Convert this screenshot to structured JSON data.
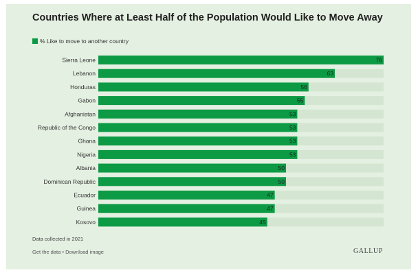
{
  "chart_data": {
    "type": "bar",
    "orientation": "horizontal",
    "title": "Countries Where at Least Half of the Population Would Like to Move Away",
    "categories": [
      "Sierra Leone",
      "Lebanon",
      "Honduras",
      "Gabon",
      "Afghanistan",
      "Republic of the Congo",
      "Ghana",
      "Nigeria",
      "Albania",
      "Dominican Republic",
      "Ecuador",
      "Guinea",
      "Kosovo"
    ],
    "series": [
      {
        "name": "% Like to move to another country",
        "values": [
          76,
          63,
          56,
          55,
          53,
          53,
          53,
          53,
          50,
          50,
          47,
          47,
          45
        ]
      }
    ],
    "xlim": [
      0,
      76
    ],
    "legend_position": "top-left",
    "note": "Data collected in 2021"
  },
  "colors": {
    "bar": "#0d9a45",
    "track": "#d4e6d1",
    "background": "#e4f0e1"
  },
  "footer": {
    "get_data": "Get the data",
    "separator": "•",
    "download": "Download image",
    "brand": "GALLUP"
  }
}
